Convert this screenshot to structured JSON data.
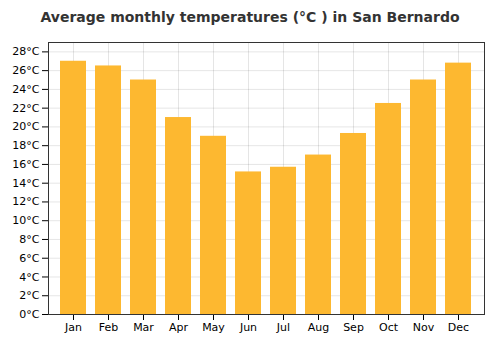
{
  "chart_data": {
    "type": "bar",
    "title": "Average monthly temperatures (°C ) in San Bernardo",
    "categories": [
      "Jan",
      "Feb",
      "Mar",
      "Apr",
      "May",
      "Jun",
      "Jul",
      "Aug",
      "Sep",
      "Oct",
      "Nov",
      "Dec"
    ],
    "values": [
      27.0,
      26.5,
      25.0,
      21.0,
      19.0,
      15.2,
      15.7,
      17.0,
      19.3,
      22.5,
      25.0,
      26.8
    ],
    "color": "#FDB830",
    "ylim": [
      0,
      29
    ],
    "yticks": [
      {
        "value": 0,
        "label": "0°C"
      },
      {
        "value": 2,
        "label": "2°C"
      },
      {
        "value": 4,
        "label": "4°C"
      },
      {
        "value": 6,
        "label": "6°C"
      },
      {
        "value": 8,
        "label": "8°C"
      },
      {
        "value": 10,
        "label": "10°C"
      },
      {
        "value": 12,
        "label": "12°C"
      },
      {
        "value": 14,
        "label": "14°C"
      },
      {
        "value": 16,
        "label": "16°C"
      },
      {
        "value": 18,
        "label": "18°C"
      },
      {
        "value": 20,
        "label": "20°C"
      },
      {
        "value": 22,
        "label": "22°C"
      },
      {
        "value": 24,
        "label": "24°C"
      },
      {
        "value": 26,
        "label": "26°C"
      },
      {
        "value": 28,
        "label": "28°C"
      }
    ],
    "grid": true
  }
}
